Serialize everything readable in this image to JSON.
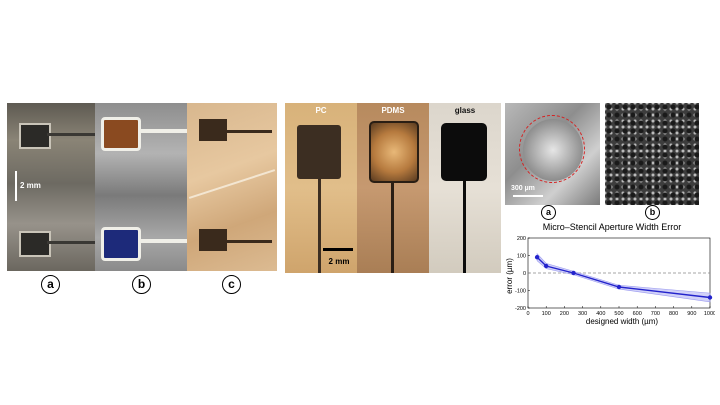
{
  "fig1": {
    "scale_label": "2 mm",
    "labels": [
      "a",
      "b",
      "c"
    ]
  },
  "fig2": {
    "materials": [
      "PC",
      "PDMS",
      "glass"
    ],
    "scale_label": "2 mm"
  },
  "fig3": {
    "scale_label": "300 µm",
    "labels": [
      "a",
      "b"
    ]
  },
  "chart_data": {
    "type": "line",
    "title": "Micro–Stencil Aperture Width Error",
    "xlabel": "designed width (µm)",
    "ylabel": "error (µm)",
    "xlim": [
      0,
      1000
    ],
    "ylim": [
      -200,
      200
    ],
    "xticks": [
      0,
      100,
      200,
      300,
      400,
      500,
      600,
      700,
      800,
      900,
      1000
    ],
    "yticks": [
      -200,
      -100,
      0,
      100,
      200
    ],
    "reference_line": 0,
    "series": [
      {
        "x": [
          50,
          100,
          250,
          500,
          1000
        ],
        "values": [
          90,
          40,
          0,
          -80,
          -140
        ]
      }
    ],
    "band_upper": [
      110,
      55,
      10,
      -70,
      -115
    ],
    "band_lower": [
      70,
      25,
      -10,
      -92,
      -165
    ],
    "colors": {
      "series": "#2323cc",
      "band": "#9a9af0",
      "reference": "#888888"
    }
  }
}
